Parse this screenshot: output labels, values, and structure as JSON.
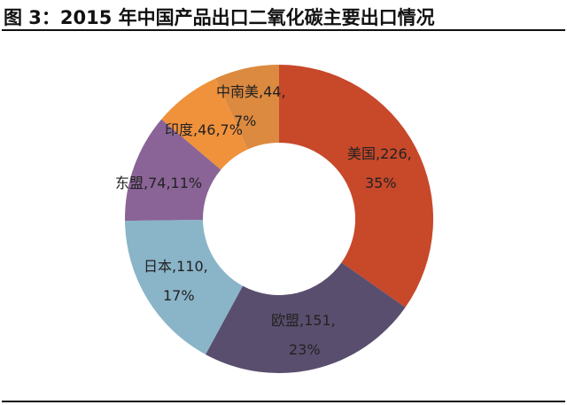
{
  "title": "图 3：2015 年中国产品出口二氧化碳主要出口情况",
  "chart_data": {
    "type": "pie",
    "donut": true,
    "title": "图 3：2015 年中国产品出口二氧化碳主要出口情况",
    "categories": [
      "美国",
      "欧盟",
      "日本",
      "东盟",
      "印度",
      "中南美"
    ],
    "values": [
      226,
      151,
      110,
      74,
      46,
      44
    ],
    "percent_labels": [
      "35%",
      "23%",
      "17%",
      "11%",
      "7%",
      "7%"
    ],
    "colors": [
      "#C8482A",
      "#5A4E6E",
      "#8AB4C8",
      "#8A6496",
      "#F0923C",
      "#DC8A40"
    ],
    "labels": [
      [
        "美国,226,",
        "35%"
      ],
      [
        "欧盟,151,",
        "23%"
      ],
      [
        "日本,110,",
        "17%"
      ],
      [
        "东盟,74,11%"
      ],
      [
        "印度,46,7%"
      ],
      [
        "中南美,44,",
        "7%"
      ]
    ]
  }
}
